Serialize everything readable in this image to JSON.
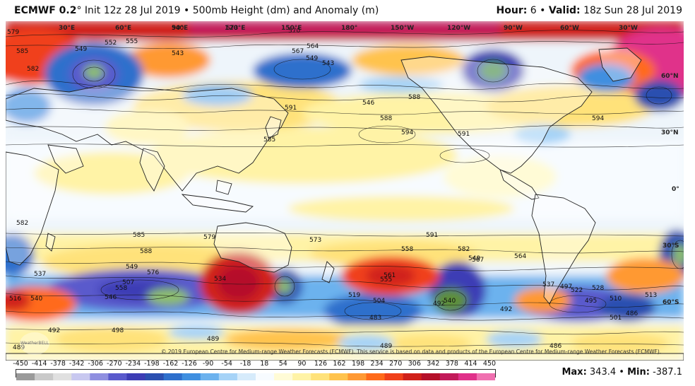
{
  "header": {
    "model": "ECMWF 0.2",
    "degree_symbol": "°",
    "description": "Init 12z 28 Jul 2019 • 500mb Height (dm) and Anomaly (m)",
    "hour_label": "Hour:",
    "hour_value": "6",
    "separator": "•",
    "valid_label": "Valid:",
    "valid_value": "18z Sun 28 Jul 2019"
  },
  "map": {
    "lon_labels": [
      "30°E",
      "60°E",
      "90°E",
      "120°E",
      "150°E",
      "180°",
      "150°W",
      "120°W",
      "90°W",
      "60°W",
      "30°W"
    ],
    "lat_labels": [
      "60°N",
      "30°N",
      "0°",
      "30°S",
      "60°S"
    ],
    "contour_labels": [
      "579",
      "585",
      "582",
      "549",
      "552",
      "555",
      "543",
      "540",
      "573",
      "570",
      "567",
      "564",
      "543",
      "549",
      "546",
      "588",
      "594",
      "591",
      "585",
      "591",
      "594",
      "588",
      "591",
      "582",
      "585",
      "588",
      "576",
      "579",
      "573",
      "582",
      "564",
      "567",
      "549",
      "558",
      "546",
      "540",
      "507",
      "534",
      "561",
      "555",
      "504",
      "519",
      "483",
      "492",
      "501",
      "486",
      "489",
      "498",
      "492",
      "489",
      "495",
      "510",
      "513",
      "516",
      "522",
      "528",
      "537",
      "540",
      "492",
      "489",
      "486",
      "497",
      "537",
      "549",
      "558"
    ],
    "copyright": "© 2019 European Centre for Medium-range Weather Forecasts (ECMWF). This service is based on data and products of the European Centre for Medium-range Weather Forecasts (ECMWF).",
    "watermark": "WeatherBELL"
  },
  "colorbar": {
    "ticks": [
      "-450",
      "-414",
      "-378",
      "-342",
      "-306",
      "-270",
      "-234",
      "-198",
      "-162",
      "-126",
      "-90",
      "-54",
      "-18",
      "18",
      "54",
      "90",
      "126",
      "162",
      "198",
      "234",
      "270",
      "306",
      "342",
      "378",
      "414",
      "450"
    ],
    "colors": [
      "#9a9a9a",
      "#c9c9c9",
      "#e0e0e0",
      "#c8c8f0",
      "#8f8fe0",
      "#5a5acc",
      "#3d3db5",
      "#2b4fb0",
      "#2e6fcc",
      "#3f8fe0",
      "#6cb2ee",
      "#a6d3f7",
      "#d6ebfb",
      "#f7fbff",
      "#fffbd6",
      "#fff3a6",
      "#ffe27a",
      "#ffc34d",
      "#ff9933",
      "#ff6a1a",
      "#f0401a",
      "#d0201a",
      "#b5102a",
      "#c21a5a",
      "#e0308a",
      "#f070b0"
    ]
  },
  "stats": {
    "max_label": "Max:",
    "max_value": "343.4",
    "min_label": "Min:",
    "min_value": "-387.1",
    "separator": "•"
  }
}
